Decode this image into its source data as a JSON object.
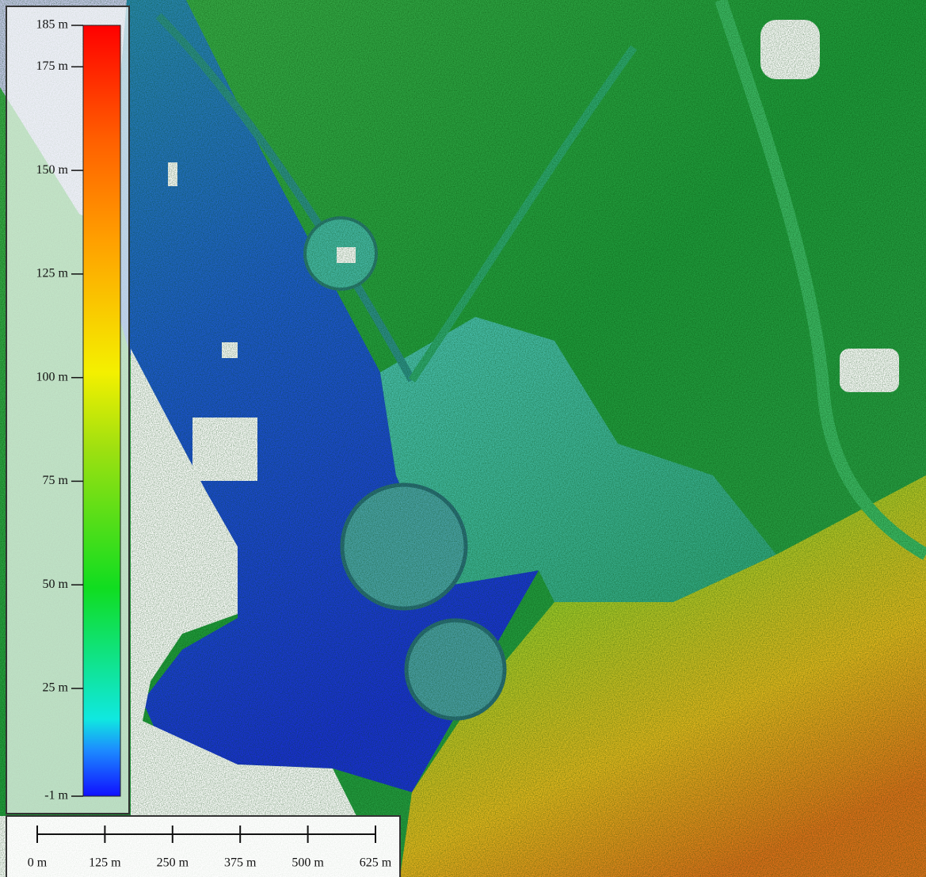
{
  "legend": {
    "range": [
      -1,
      185
    ],
    "ticks": [
      {
        "value": 185,
        "label": "185 m"
      },
      {
        "value": 175,
        "label": "175 m"
      },
      {
        "value": 150,
        "label": "150 m"
      },
      {
        "value": 125,
        "label": "125 m"
      },
      {
        "value": 100,
        "label": "100 m"
      },
      {
        "value": 75,
        "label": "75 m"
      },
      {
        "value": 50,
        "label": "50 m"
      },
      {
        "value": 25,
        "label": "25 m"
      },
      {
        "value": -1,
        "label": "-1 m"
      }
    ]
  },
  "scale_bar": {
    "range": [
      0,
      625
    ],
    "ticks": [
      {
        "value": 0,
        "label": "0 m"
      },
      {
        "value": 125,
        "label": "125 m"
      },
      {
        "value": 250,
        "label": "250 m"
      },
      {
        "value": 375,
        "label": "375 m"
      },
      {
        "value": 500,
        "label": "500 m"
      },
      {
        "value": 625,
        "label": "625 m"
      }
    ]
  }
}
